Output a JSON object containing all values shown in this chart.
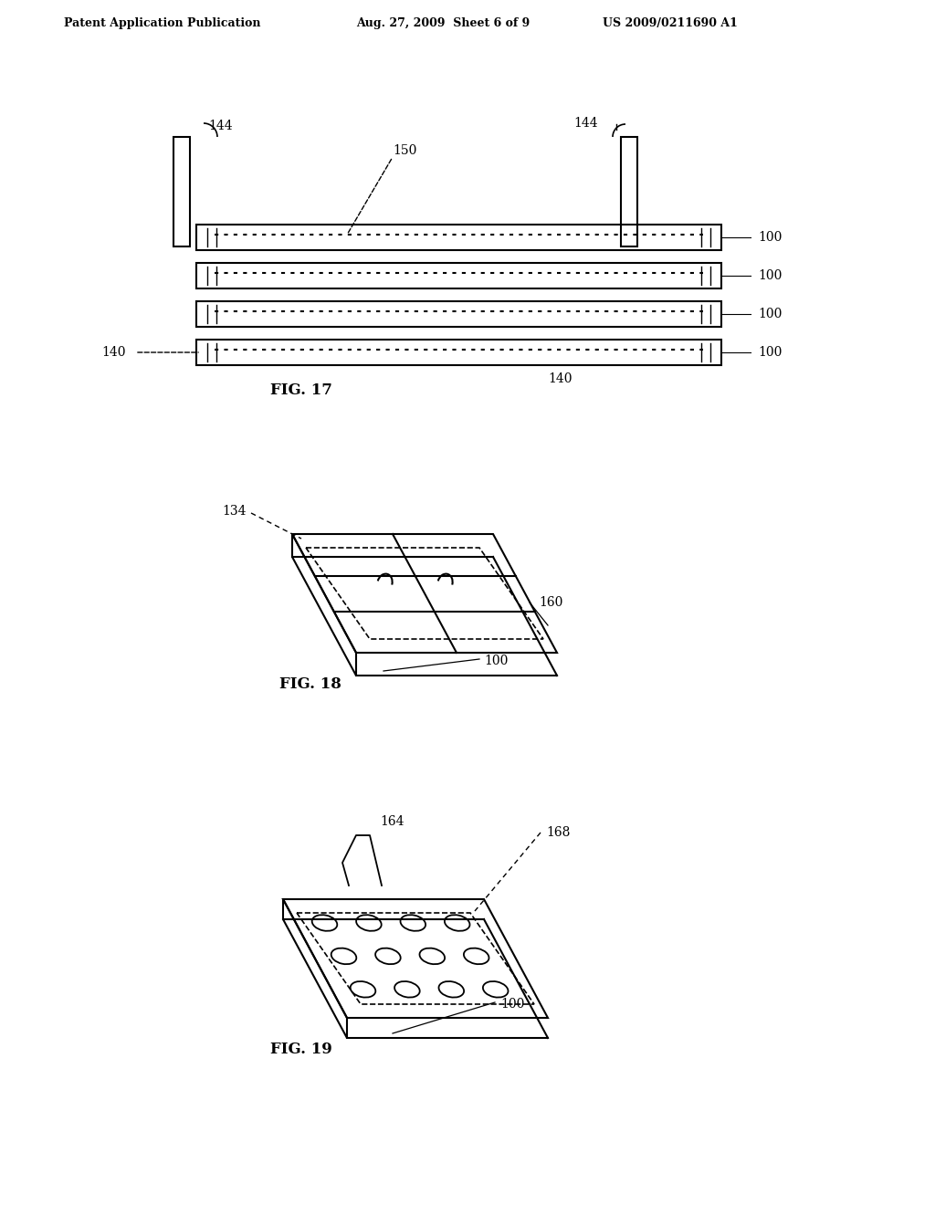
{
  "bg_color": "#ffffff",
  "header_left": "Patent Application Publication",
  "header_mid": "Aug. 27, 2009  Sheet 6 of 9",
  "header_right": "US 2009/0211690 A1",
  "fig17_label": "FIG. 17",
  "fig18_label": "FIG. 18",
  "fig19_label": "FIG. 19"
}
